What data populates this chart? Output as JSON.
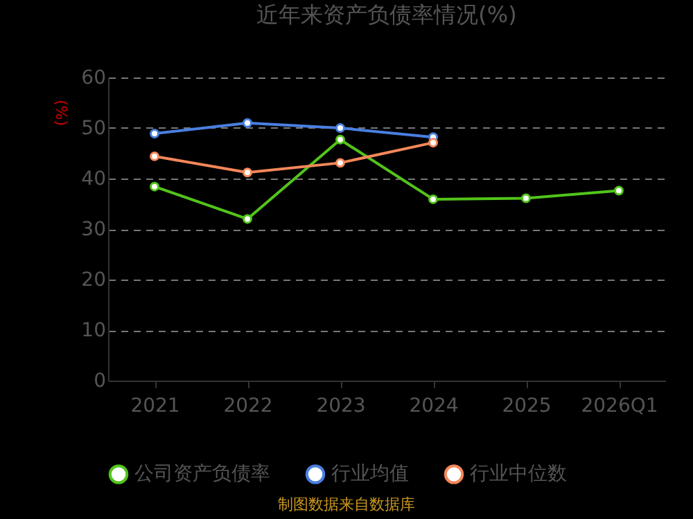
{
  "chart_data": {
    "type": "line",
    "title": "近年来资产负债率情况(%)",
    "ylabel": "(%)",
    "categories": [
      "2021",
      "2022",
      "2023",
      "2024",
      "2025",
      "2026Q1"
    ],
    "series": [
      {
        "name": "公司资产负债率",
        "color": "#52c41a",
        "values": [
          38.4,
          32.0,
          47.7,
          35.9,
          36.1,
          37.6
        ]
      },
      {
        "name": "行业均值",
        "color": "#4a7fe0",
        "values": [
          48.9,
          51.0,
          50.0,
          48.2,
          null,
          null
        ]
      },
      {
        "name": "行业中位数",
        "color": "#f5875a",
        "values": [
          44.4,
          41.2,
          43.1,
          47.1,
          null,
          null
        ]
      }
    ],
    "ylim": [
      0,
      60
    ],
    "yticks": [
      0,
      10,
      20,
      30,
      40,
      50,
      60
    ],
    "grid": "y",
    "legend": "bottom",
    "marker": "circle",
    "line_style": "solid",
    "annotations": [
      "制图数据来自数据库"
    ]
  }
}
